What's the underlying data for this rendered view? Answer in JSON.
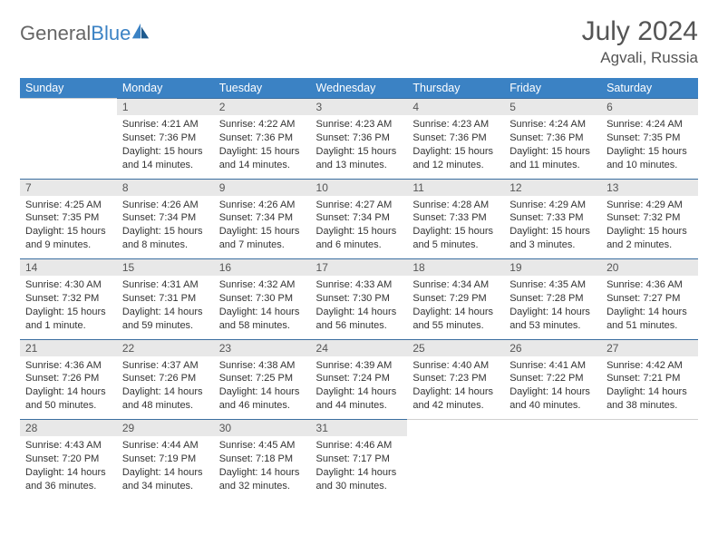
{
  "brand": {
    "part1": "General",
    "part2": "Blue"
  },
  "title": "July 2024",
  "location": "Agvali, Russia",
  "colors": {
    "header_bg": "#3b82c4",
    "header_text": "#ffffff",
    "daynum_bg": "#e8e8e8",
    "daynum_border": "#3b6ea0",
    "text": "#333333",
    "title_text": "#555555"
  },
  "weekdays": [
    "Sunday",
    "Monday",
    "Tuesday",
    "Wednesday",
    "Thursday",
    "Friday",
    "Saturday"
  ],
  "weeks": [
    {
      "nums": [
        "",
        "1",
        "2",
        "3",
        "4",
        "5",
        "6"
      ],
      "cells": [
        {
          "empty": true
        },
        {
          "sunrise": "Sunrise: 4:21 AM",
          "sunset": "Sunset: 7:36 PM",
          "daylight1": "Daylight: 15 hours",
          "daylight2": "and 14 minutes."
        },
        {
          "sunrise": "Sunrise: 4:22 AM",
          "sunset": "Sunset: 7:36 PM",
          "daylight1": "Daylight: 15 hours",
          "daylight2": "and 14 minutes."
        },
        {
          "sunrise": "Sunrise: 4:23 AM",
          "sunset": "Sunset: 7:36 PM",
          "daylight1": "Daylight: 15 hours",
          "daylight2": "and 13 minutes."
        },
        {
          "sunrise": "Sunrise: 4:23 AM",
          "sunset": "Sunset: 7:36 PM",
          "daylight1": "Daylight: 15 hours",
          "daylight2": "and 12 minutes."
        },
        {
          "sunrise": "Sunrise: 4:24 AM",
          "sunset": "Sunset: 7:36 PM",
          "daylight1": "Daylight: 15 hours",
          "daylight2": "and 11 minutes."
        },
        {
          "sunrise": "Sunrise: 4:24 AM",
          "sunset": "Sunset: 7:35 PM",
          "daylight1": "Daylight: 15 hours",
          "daylight2": "and 10 minutes."
        }
      ]
    },
    {
      "nums": [
        "7",
        "8",
        "9",
        "10",
        "11",
        "12",
        "13"
      ],
      "cells": [
        {
          "sunrise": "Sunrise: 4:25 AM",
          "sunset": "Sunset: 7:35 PM",
          "daylight1": "Daylight: 15 hours",
          "daylight2": "and 9 minutes."
        },
        {
          "sunrise": "Sunrise: 4:26 AM",
          "sunset": "Sunset: 7:34 PM",
          "daylight1": "Daylight: 15 hours",
          "daylight2": "and 8 minutes."
        },
        {
          "sunrise": "Sunrise: 4:26 AM",
          "sunset": "Sunset: 7:34 PM",
          "daylight1": "Daylight: 15 hours",
          "daylight2": "and 7 minutes."
        },
        {
          "sunrise": "Sunrise: 4:27 AM",
          "sunset": "Sunset: 7:34 PM",
          "daylight1": "Daylight: 15 hours",
          "daylight2": "and 6 minutes."
        },
        {
          "sunrise": "Sunrise: 4:28 AM",
          "sunset": "Sunset: 7:33 PM",
          "daylight1": "Daylight: 15 hours",
          "daylight2": "and 5 minutes."
        },
        {
          "sunrise": "Sunrise: 4:29 AM",
          "sunset": "Sunset: 7:33 PM",
          "daylight1": "Daylight: 15 hours",
          "daylight2": "and 3 minutes."
        },
        {
          "sunrise": "Sunrise: 4:29 AM",
          "sunset": "Sunset: 7:32 PM",
          "daylight1": "Daylight: 15 hours",
          "daylight2": "and 2 minutes."
        }
      ]
    },
    {
      "nums": [
        "14",
        "15",
        "16",
        "17",
        "18",
        "19",
        "20"
      ],
      "cells": [
        {
          "sunrise": "Sunrise: 4:30 AM",
          "sunset": "Sunset: 7:32 PM",
          "daylight1": "Daylight: 15 hours",
          "daylight2": "and 1 minute."
        },
        {
          "sunrise": "Sunrise: 4:31 AM",
          "sunset": "Sunset: 7:31 PM",
          "daylight1": "Daylight: 14 hours",
          "daylight2": "and 59 minutes."
        },
        {
          "sunrise": "Sunrise: 4:32 AM",
          "sunset": "Sunset: 7:30 PM",
          "daylight1": "Daylight: 14 hours",
          "daylight2": "and 58 minutes."
        },
        {
          "sunrise": "Sunrise: 4:33 AM",
          "sunset": "Sunset: 7:30 PM",
          "daylight1": "Daylight: 14 hours",
          "daylight2": "and 56 minutes."
        },
        {
          "sunrise": "Sunrise: 4:34 AM",
          "sunset": "Sunset: 7:29 PM",
          "daylight1": "Daylight: 14 hours",
          "daylight2": "and 55 minutes."
        },
        {
          "sunrise": "Sunrise: 4:35 AM",
          "sunset": "Sunset: 7:28 PM",
          "daylight1": "Daylight: 14 hours",
          "daylight2": "and 53 minutes."
        },
        {
          "sunrise": "Sunrise: 4:36 AM",
          "sunset": "Sunset: 7:27 PM",
          "daylight1": "Daylight: 14 hours",
          "daylight2": "and 51 minutes."
        }
      ]
    },
    {
      "nums": [
        "21",
        "22",
        "23",
        "24",
        "25",
        "26",
        "27"
      ],
      "cells": [
        {
          "sunrise": "Sunrise: 4:36 AM",
          "sunset": "Sunset: 7:26 PM",
          "daylight1": "Daylight: 14 hours",
          "daylight2": "and 50 minutes."
        },
        {
          "sunrise": "Sunrise: 4:37 AM",
          "sunset": "Sunset: 7:26 PM",
          "daylight1": "Daylight: 14 hours",
          "daylight2": "and 48 minutes."
        },
        {
          "sunrise": "Sunrise: 4:38 AM",
          "sunset": "Sunset: 7:25 PM",
          "daylight1": "Daylight: 14 hours",
          "daylight2": "and 46 minutes."
        },
        {
          "sunrise": "Sunrise: 4:39 AM",
          "sunset": "Sunset: 7:24 PM",
          "daylight1": "Daylight: 14 hours",
          "daylight2": "and 44 minutes."
        },
        {
          "sunrise": "Sunrise: 4:40 AM",
          "sunset": "Sunset: 7:23 PM",
          "daylight1": "Daylight: 14 hours",
          "daylight2": "and 42 minutes."
        },
        {
          "sunrise": "Sunrise: 4:41 AM",
          "sunset": "Sunset: 7:22 PM",
          "daylight1": "Daylight: 14 hours",
          "daylight2": "and 40 minutes."
        },
        {
          "sunrise": "Sunrise: 4:42 AM",
          "sunset": "Sunset: 7:21 PM",
          "daylight1": "Daylight: 14 hours",
          "daylight2": "and 38 minutes."
        }
      ]
    },
    {
      "nums": [
        "28",
        "29",
        "30",
        "31",
        "",
        "",
        ""
      ],
      "cells": [
        {
          "sunrise": "Sunrise: 4:43 AM",
          "sunset": "Sunset: 7:20 PM",
          "daylight1": "Daylight: 14 hours",
          "daylight2": "and 36 minutes."
        },
        {
          "sunrise": "Sunrise: 4:44 AM",
          "sunset": "Sunset: 7:19 PM",
          "daylight1": "Daylight: 14 hours",
          "daylight2": "and 34 minutes."
        },
        {
          "sunrise": "Sunrise: 4:45 AM",
          "sunset": "Sunset: 7:18 PM",
          "daylight1": "Daylight: 14 hours",
          "daylight2": "and 32 minutes."
        },
        {
          "sunrise": "Sunrise: 4:46 AM",
          "sunset": "Sunset: 7:17 PM",
          "daylight1": "Daylight: 14 hours",
          "daylight2": "and 30 minutes."
        },
        {
          "empty": true
        },
        {
          "empty": true
        },
        {
          "empty": true
        }
      ]
    }
  ]
}
